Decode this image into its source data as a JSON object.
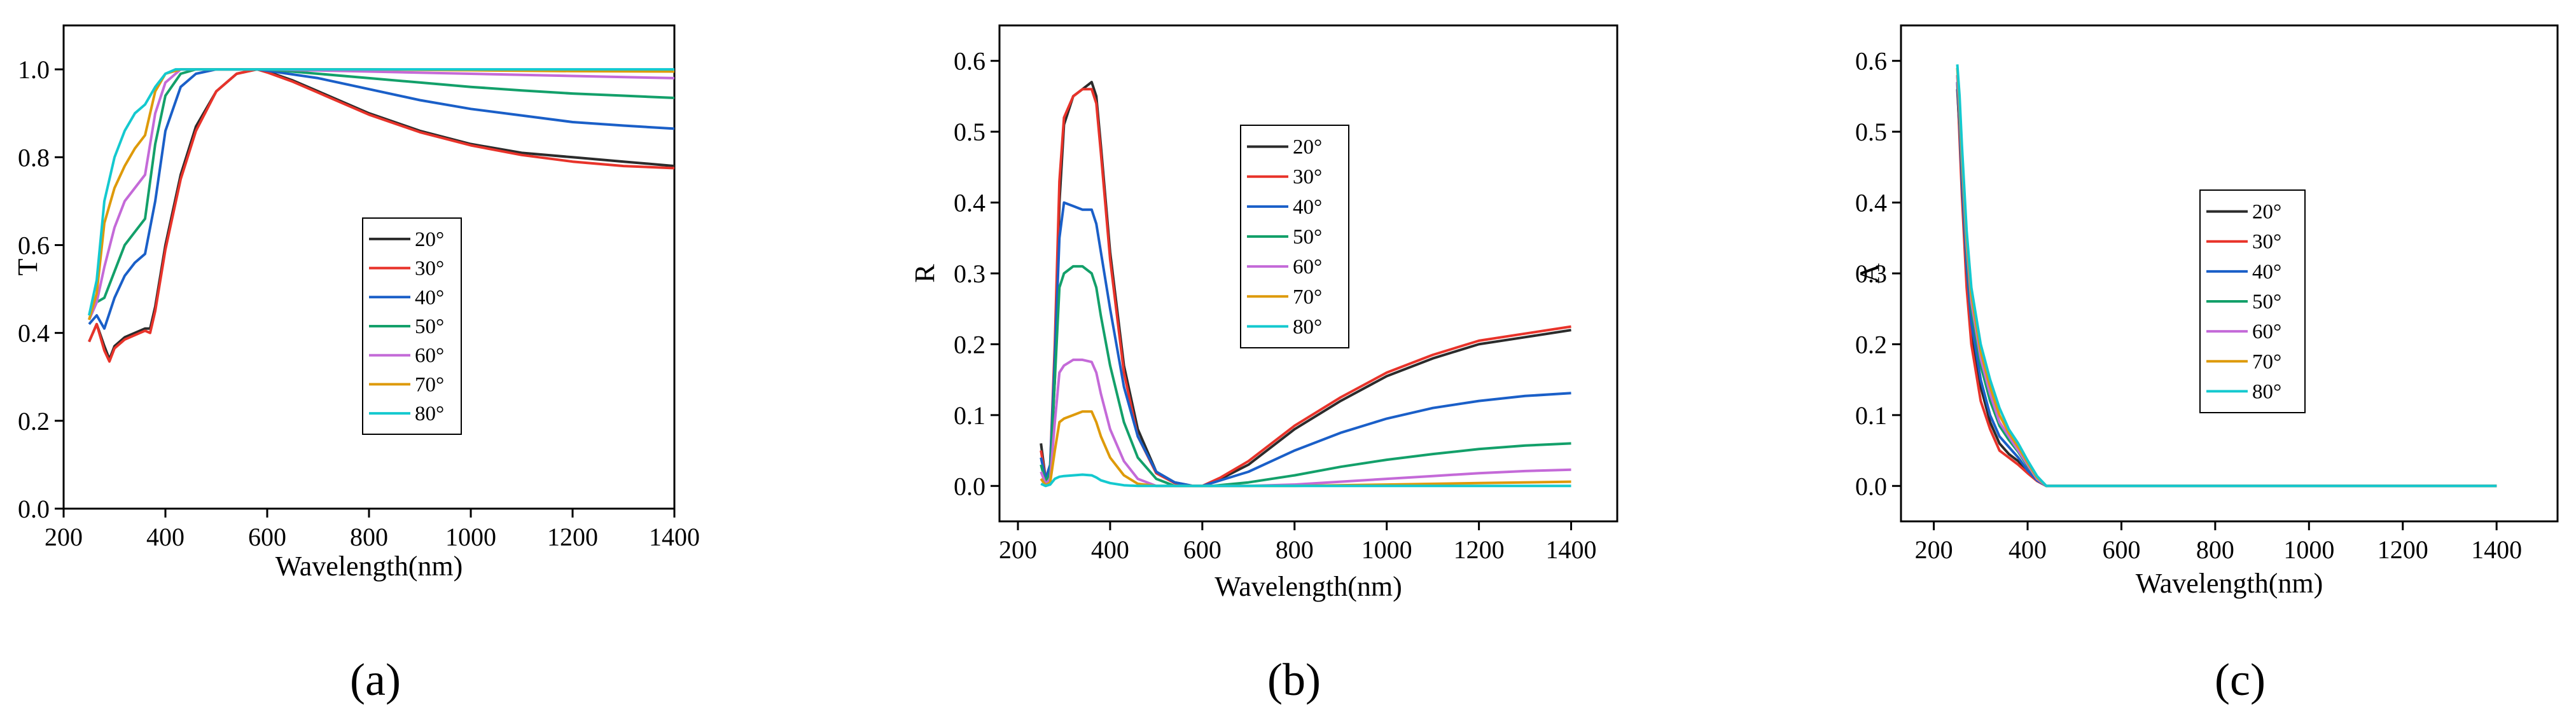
{
  "series_colors": {
    "20°": "#2b2b2b",
    "30°": "#e8332a",
    "40°": "#1a5fc8",
    "50°": "#13a06a",
    "60°": "#c46ad8",
    "70°": "#de9a0a",
    "80°": "#14c9cf"
  },
  "chart_data": [
    {
      "type": "line",
      "caption": "(a)",
      "ylabel": "T",
      "xlabel": "Wavelength(nm)",
      "xlim": [
        200,
        1400
      ],
      "ylim": [
        0.0,
        1.1
      ],
      "xticks": [
        200,
        400,
        600,
        800,
        1000,
        1200,
        1400
      ],
      "yticks": [
        0.0,
        0.2,
        0.4,
        0.6,
        0.8,
        1.0
      ],
      "ytick_labels": [
        "0.0",
        "0.2",
        "0.4",
        "0.6",
        "0.8",
        "1.0"
      ],
      "legend": [
        "20°",
        "30°",
        "40°",
        "50°",
        "60°",
        "70°",
        "80°"
      ],
      "series": [
        {
          "name": "20°",
          "x": [
            250,
            265,
            280,
            290,
            300,
            320,
            340,
            360,
            370,
            380,
            400,
            430,
            460,
            500,
            540,
            580,
            600,
            650,
            700,
            800,
            900,
            1000,
            1100,
            1200,
            1300,
            1400
          ],
          "y": [
            0.38,
            0.42,
            0.37,
            0.34,
            0.37,
            0.39,
            0.4,
            0.41,
            0.41,
            0.46,
            0.6,
            0.76,
            0.87,
            0.95,
            0.99,
            1.0,
            0.995,
            0.975,
            0.95,
            0.9,
            0.86,
            0.83,
            0.81,
            0.8,
            0.79,
            0.78
          ]
        },
        {
          "name": "30°",
          "x": [
            250,
            265,
            280,
            290,
            300,
            320,
            340,
            360,
            370,
            380,
            400,
            430,
            460,
            500,
            540,
            580,
            600,
            650,
            700,
            800,
            900,
            1000,
            1100,
            1200,
            1300,
            1400
          ],
          "y": [
            0.38,
            0.42,
            0.36,
            0.335,
            0.365,
            0.385,
            0.395,
            0.405,
            0.4,
            0.45,
            0.59,
            0.75,
            0.86,
            0.95,
            0.99,
            1.0,
            0.993,
            0.972,
            0.947,
            0.897,
            0.857,
            0.827,
            0.805,
            0.79,
            0.78,
            0.775
          ]
        },
        {
          "name": "40°",
          "x": [
            250,
            265,
            280,
            300,
            320,
            340,
            360,
            380,
            400,
            430,
            460,
            500,
            540,
            580,
            600,
            700,
            800,
            900,
            1000,
            1100,
            1200,
            1300,
            1400
          ],
          "y": [
            0.42,
            0.44,
            0.41,
            0.48,
            0.53,
            0.56,
            0.58,
            0.7,
            0.86,
            0.96,
            0.99,
            1.0,
            1.0,
            1.0,
            0.997,
            0.98,
            0.955,
            0.93,
            0.91,
            0.895,
            0.88,
            0.872,
            0.865
          ]
        },
        {
          "name": "50°",
          "x": [
            250,
            265,
            280,
            300,
            320,
            340,
            360,
            380,
            400,
            430,
            460,
            500,
            600,
            700,
            800,
            900,
            1000,
            1100,
            1200,
            1300,
            1400
          ],
          "y": [
            0.43,
            0.47,
            0.48,
            0.54,
            0.6,
            0.63,
            0.66,
            0.83,
            0.94,
            0.99,
            1.0,
            1.0,
            1.0,
            0.99,
            0.98,
            0.97,
            0.96,
            0.952,
            0.945,
            0.94,
            0.935
          ]
        },
        {
          "name": "60°",
          "x": [
            250,
            265,
            280,
            300,
            320,
            340,
            360,
            380,
            400,
            430,
            460,
            500,
            600,
            800,
            1000,
            1200,
            1400
          ],
          "y": [
            0.43,
            0.47,
            0.55,
            0.64,
            0.7,
            0.73,
            0.76,
            0.9,
            0.97,
            1.0,
            1.0,
            1.0,
            1.0,
            0.995,
            0.99,
            0.985,
            0.98
          ]
        },
        {
          "name": "70°",
          "x": [
            250,
            265,
            280,
            300,
            320,
            340,
            360,
            380,
            400,
            430,
            460,
            600,
            800,
            1000,
            1200,
            1400
          ],
          "y": [
            0.43,
            0.49,
            0.65,
            0.73,
            0.78,
            0.82,
            0.85,
            0.95,
            0.99,
            1.0,
            1.0,
            1.0,
            1.0,
            0.998,
            0.996,
            0.995
          ]
        },
        {
          "name": "80°",
          "x": [
            250,
            265,
            280,
            300,
            320,
            340,
            360,
            380,
            400,
            420,
            440,
            600,
            800,
            1000,
            1200,
            1400
          ],
          "y": [
            0.44,
            0.52,
            0.7,
            0.8,
            0.86,
            0.9,
            0.92,
            0.96,
            0.99,
            1.0,
            1.0,
            1.0,
            1.0,
            1.0,
            1.0,
            1.0
          ]
        }
      ]
    },
    {
      "type": "line",
      "caption": "(b)",
      "ylabel": "R",
      "xlabel": "Wavelength(nm)",
      "xlim": [
        160,
        1500
      ],
      "ylim": [
        -0.05,
        0.65
      ],
      "xticks": [
        200,
        400,
        600,
        800,
        1000,
        1200,
        1400
      ],
      "yticks": [
        0.0,
        0.1,
        0.2,
        0.3,
        0.4,
        0.5,
        0.6
      ],
      "ytick_labels": [
        "0.0",
        "0.1",
        "0.2",
        "0.3",
        "0.4",
        "0.5",
        "0.6"
      ],
      "legend": [
        "20°",
        "30°",
        "40°",
        "50°",
        "60°",
        "70°",
        "80°"
      ],
      "series": [
        {
          "name": "20°",
          "x": [
            250,
            260,
            270,
            280,
            290,
            300,
            320,
            340,
            360,
            370,
            380,
            400,
            430,
            460,
            500,
            540,
            580,
            600,
            640,
            700,
            800,
            900,
            1000,
            1100,
            1200,
            1300,
            1400
          ],
          "y": [
            0.06,
            0.01,
            0.02,
            0.15,
            0.4,
            0.51,
            0.55,
            0.56,
            0.57,
            0.55,
            0.48,
            0.33,
            0.17,
            0.08,
            0.02,
            0.005,
            0.0,
            0.0,
            0.01,
            0.03,
            0.08,
            0.12,
            0.155,
            0.18,
            0.2,
            0.21,
            0.22
          ]
        },
        {
          "name": "30°",
          "x": [
            250,
            260,
            270,
            280,
            290,
            300,
            320,
            340,
            360,
            370,
            380,
            400,
            430,
            460,
            500,
            540,
            580,
            600,
            640,
            700,
            800,
            900,
            1000,
            1100,
            1200,
            1300,
            1400
          ],
          "y": [
            0.05,
            0.01,
            0.03,
            0.2,
            0.43,
            0.52,
            0.55,
            0.56,
            0.56,
            0.54,
            0.47,
            0.32,
            0.16,
            0.07,
            0.018,
            0.004,
            0.0,
            0.0,
            0.012,
            0.035,
            0.085,
            0.125,
            0.16,
            0.185,
            0.205,
            0.215,
            0.225
          ]
        },
        {
          "name": "40°",
          "x": [
            250,
            260,
            270,
            280,
            290,
            300,
            320,
            340,
            360,
            370,
            380,
            400,
            430,
            460,
            500,
            540,
            580,
            600,
            650,
            700,
            800,
            900,
            1000,
            1100,
            1200,
            1300,
            1400
          ],
          "y": [
            0.04,
            0.01,
            0.03,
            0.18,
            0.35,
            0.4,
            0.395,
            0.39,
            0.39,
            0.37,
            0.33,
            0.25,
            0.14,
            0.07,
            0.02,
            0.005,
            0.0,
            0.0,
            0.01,
            0.02,
            0.05,
            0.075,
            0.095,
            0.11,
            0.12,
            0.127,
            0.131
          ]
        },
        {
          "name": "50°",
          "x": [
            250,
            260,
            270,
            280,
            290,
            300,
            320,
            340,
            360,
            370,
            380,
            400,
            430,
            460,
            500,
            540,
            580,
            620,
            700,
            800,
            900,
            1000,
            1100,
            1200,
            1300,
            1400
          ],
          "y": [
            0.03,
            0.005,
            0.02,
            0.15,
            0.28,
            0.3,
            0.31,
            0.31,
            0.3,
            0.28,
            0.24,
            0.17,
            0.09,
            0.04,
            0.01,
            0.0,
            0.0,
            0.0,
            0.005,
            0.015,
            0.027,
            0.037,
            0.045,
            0.052,
            0.057,
            0.06
          ]
        },
        {
          "name": "60°",
          "x": [
            250,
            260,
            270,
            280,
            290,
            300,
            320,
            340,
            360,
            370,
            380,
            400,
            430,
            460,
            500,
            600,
            700,
            800,
            900,
            1000,
            1100,
            1200,
            1300,
            1400
          ],
          "y": [
            0.02,
            0.003,
            0.01,
            0.09,
            0.16,
            0.17,
            0.178,
            0.178,
            0.175,
            0.16,
            0.13,
            0.08,
            0.035,
            0.01,
            0.0,
            0.0,
            0.0,
            0.002,
            0.006,
            0.01,
            0.014,
            0.018,
            0.021,
            0.023
          ]
        },
        {
          "name": "70°",
          "x": [
            250,
            260,
            270,
            280,
            290,
            300,
            320,
            340,
            360,
            370,
            380,
            400,
            430,
            460,
            500,
            600,
            800,
            1000,
            1200,
            1400
          ],
          "y": [
            0.01,
            0.001,
            0.005,
            0.05,
            0.09,
            0.095,
            0.1,
            0.105,
            0.105,
            0.09,
            0.07,
            0.04,
            0.015,
            0.003,
            0.0,
            0.0,
            0.0,
            0.002,
            0.004,
            0.006
          ]
        },
        {
          "name": "80°",
          "x": [
            250,
            260,
            270,
            280,
            290,
            300,
            320,
            340,
            360,
            370,
            380,
            400,
            430,
            460,
            600,
            800,
            1000,
            1200,
            1400
          ],
          "y": [
            0.003,
            0.0,
            0.002,
            0.01,
            0.013,
            0.014,
            0.015,
            0.016,
            0.015,
            0.012,
            0.008,
            0.004,
            0.001,
            0.0,
            0.0,
            0.0,
            0.0,
            0.0,
            0.0
          ]
        }
      ]
    },
    {
      "type": "line",
      "caption": "(c)",
      "ylabel": "A",
      "xlabel": "Wavelength(nm)",
      "xlim": [
        130,
        1530
      ],
      "ylim": [
        -0.05,
        0.65
      ],
      "xticks": [
        200,
        400,
        600,
        800,
        1000,
        1200,
        1400
      ],
      "yticks": [
        0.0,
        0.1,
        0.2,
        0.3,
        0.4,
        0.5,
        0.6
      ],
      "ytick_labels": [
        "0.0",
        "0.1",
        "0.2",
        "0.3",
        "0.4",
        "0.5",
        "0.6"
      ],
      "legend": [
        "20°",
        "30°",
        "40°",
        "50°",
        "60°",
        "70°",
        "80°"
      ],
      "series": [
        {
          "name": "20°",
          "x": [
            250,
            255,
            260,
            270,
            280,
            300,
            320,
            340,
            360,
            380,
            400,
            420,
            440,
            500,
            700,
            1000,
            1400
          ],
          "y": [
            0.56,
            0.5,
            0.42,
            0.3,
            0.22,
            0.14,
            0.09,
            0.06,
            0.045,
            0.035,
            0.02,
            0.008,
            0.0,
            0.0,
            0.0,
            0.0,
            0.0
          ]
        },
        {
          "name": "30°",
          "x": [
            250,
            255,
            260,
            270,
            280,
            300,
            320,
            340,
            360,
            380,
            400,
            420,
            440,
            500,
            700,
            1000,
            1400
          ],
          "y": [
            0.57,
            0.49,
            0.41,
            0.28,
            0.2,
            0.12,
            0.08,
            0.05,
            0.04,
            0.03,
            0.018,
            0.007,
            0.0,
            0.0,
            0.0,
            0.0,
            0.0
          ]
        },
        {
          "name": "40°",
          "x": [
            250,
            255,
            260,
            270,
            280,
            300,
            320,
            340,
            360,
            380,
            400,
            420,
            440,
            500,
            700,
            1000,
            1400
          ],
          "y": [
            0.57,
            0.51,
            0.43,
            0.31,
            0.23,
            0.15,
            0.1,
            0.07,
            0.055,
            0.04,
            0.022,
            0.008,
            0.0,
            0.0,
            0.0,
            0.0,
            0.0
          ]
        },
        {
          "name": "50°",
          "x": [
            250,
            255,
            260,
            270,
            280,
            300,
            320,
            340,
            360,
            380,
            400,
            420,
            440,
            500,
            700,
            1000,
            1400
          ],
          "y": [
            0.58,
            0.52,
            0.45,
            0.33,
            0.25,
            0.17,
            0.12,
            0.085,
            0.065,
            0.048,
            0.028,
            0.01,
            0.0,
            0.0,
            0.0,
            0.0,
            0.0
          ]
        },
        {
          "name": "60°",
          "x": [
            250,
            255,
            260,
            270,
            280,
            300,
            320,
            340,
            360,
            380,
            400,
            420,
            440,
            500,
            700,
            1000,
            1400
          ],
          "y": [
            0.58,
            0.53,
            0.46,
            0.34,
            0.26,
            0.18,
            0.13,
            0.09,
            0.07,
            0.05,
            0.03,
            0.01,
            0.0,
            0.0,
            0.0,
            0.0,
            0.0
          ]
        },
        {
          "name": "70°",
          "x": [
            250,
            255,
            260,
            270,
            280,
            300,
            320,
            340,
            360,
            380,
            400,
            420,
            440,
            500,
            700,
            1000,
            1400
          ],
          "y": [
            0.59,
            0.54,
            0.47,
            0.35,
            0.27,
            0.19,
            0.14,
            0.1,
            0.075,
            0.055,
            0.033,
            0.012,
            0.0,
            0.0,
            0.0,
            0.0,
            0.0
          ]
        },
        {
          "name": "80°",
          "x": [
            250,
            255,
            260,
            270,
            280,
            300,
            320,
            340,
            360,
            380,
            400,
            420,
            440,
            500,
            700,
            1000,
            1400
          ],
          "y": [
            0.595,
            0.55,
            0.48,
            0.36,
            0.28,
            0.2,
            0.15,
            0.11,
            0.08,
            0.06,
            0.036,
            0.014,
            0.0,
            0.0,
            0.0,
            0.0,
            0.0
          ]
        }
      ]
    }
  ]
}
